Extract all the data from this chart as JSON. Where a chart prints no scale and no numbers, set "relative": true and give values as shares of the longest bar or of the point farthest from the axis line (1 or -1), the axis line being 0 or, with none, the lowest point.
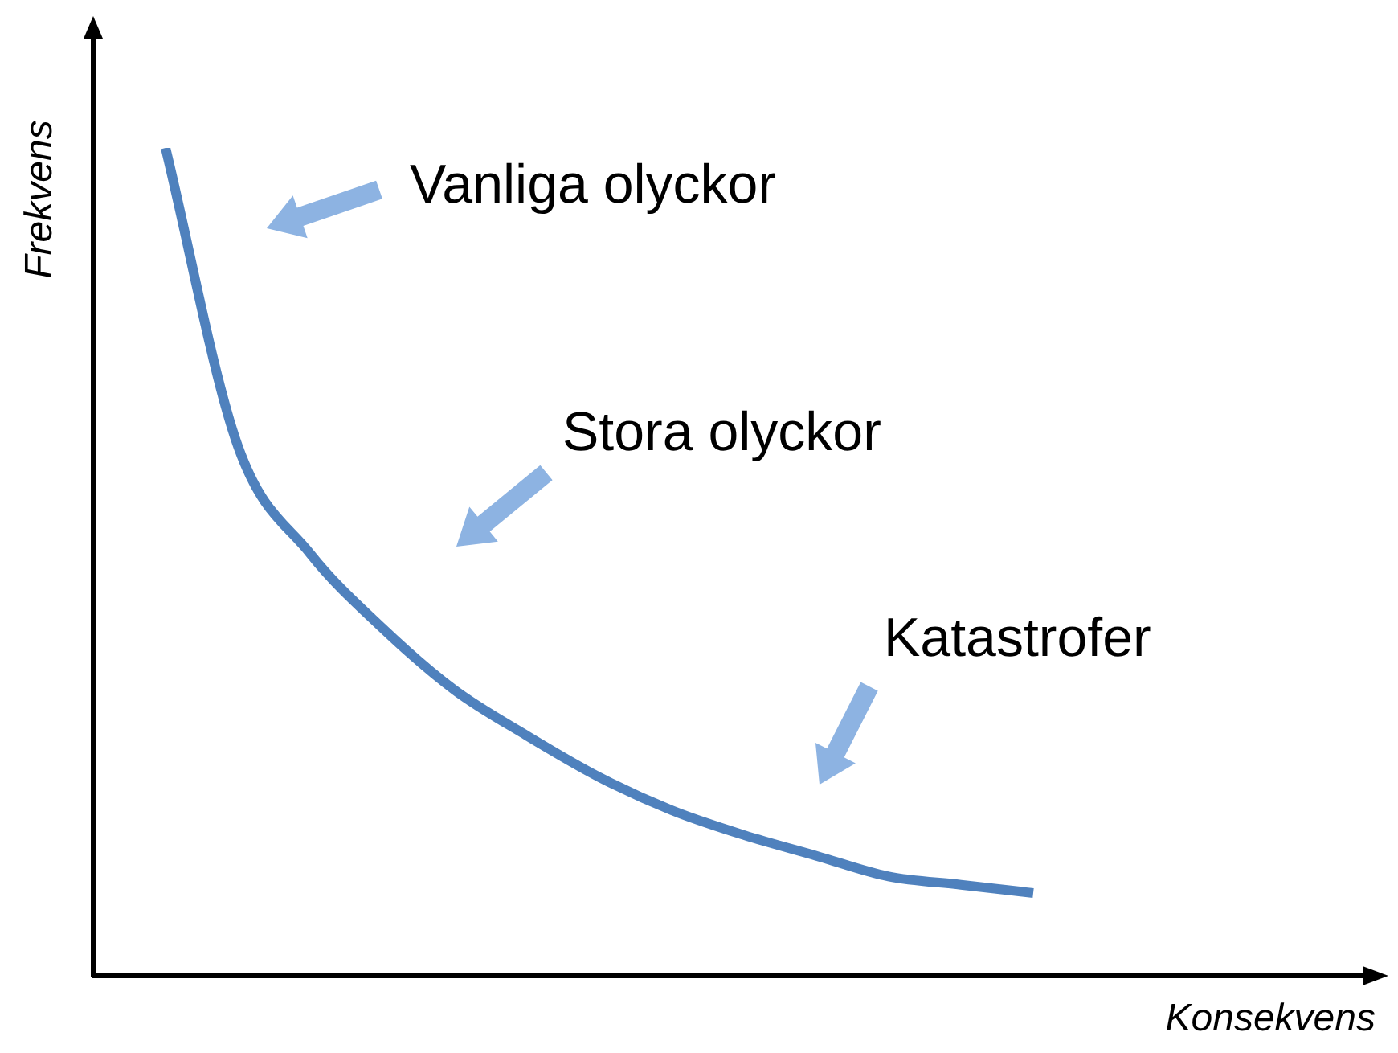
{
  "chart_data": {
    "type": "line",
    "xlabel": "Konsekvens",
    "ylabel": "Frekvens",
    "relative": true,
    "marker": "none",
    "color": "#4f81bd",
    "categories": [
      null,
      null,
      null,
      null,
      null,
      null,
      null,
      null,
      null,
      null,
      null,
      null,
      null,
      null,
      null,
      null,
      null,
      null
    ],
    "values": [
      null,
      1,
      0.64,
      0.51,
      0.42,
      0.345,
      0.29,
      0.24,
      0.2,
      0.17,
      0.145,
      0.12,
      0.11,
      0.1,
      null,
      null,
      null,
      null
    ],
    "annotations": [
      "Vanliga olyckor",
      "Stora olyckor",
      "Katastrofer"
    ]
  }
}
